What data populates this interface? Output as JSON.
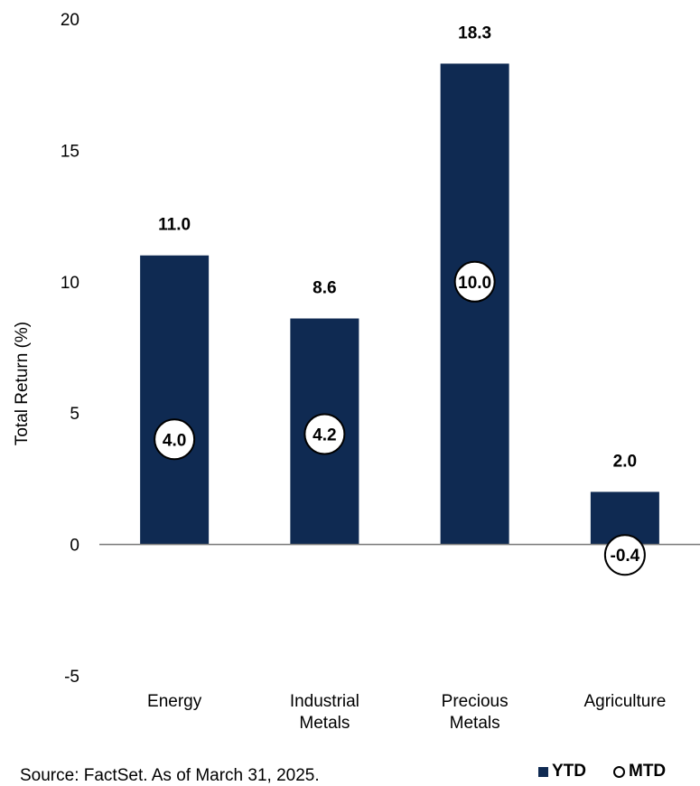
{
  "chart_data": {
    "type": "bar",
    "categories": [
      "Energy",
      "Industrial Metals",
      "Precious Metals",
      "Agriculture"
    ],
    "category_lines": [
      [
        "Energy"
      ],
      [
        "Industrial",
        "Metals"
      ],
      [
        "Precious",
        "Metals"
      ],
      [
        "Agriculture"
      ]
    ],
    "series": [
      {
        "name": "YTD",
        "values": [
          11.0,
          8.6,
          18.3,
          2.0
        ],
        "marker": "bar",
        "color": "#0f2a52"
      },
      {
        "name": "MTD",
        "values": [
          4.0,
          4.2,
          10.0,
          -0.4
        ],
        "marker": "circle",
        "color": "#ffffff"
      }
    ],
    "ylabel": "Total Return (%)",
    "ylim": [
      -5,
      20
    ],
    "yticks": [
      -5,
      0,
      5,
      10,
      15,
      20
    ],
    "grid": false,
    "legend": "bottom-right"
  },
  "source": "Source: FactSet. As of March 31, 2025.",
  "legend": {
    "ytd": "YTD",
    "mtd": "MTD"
  }
}
